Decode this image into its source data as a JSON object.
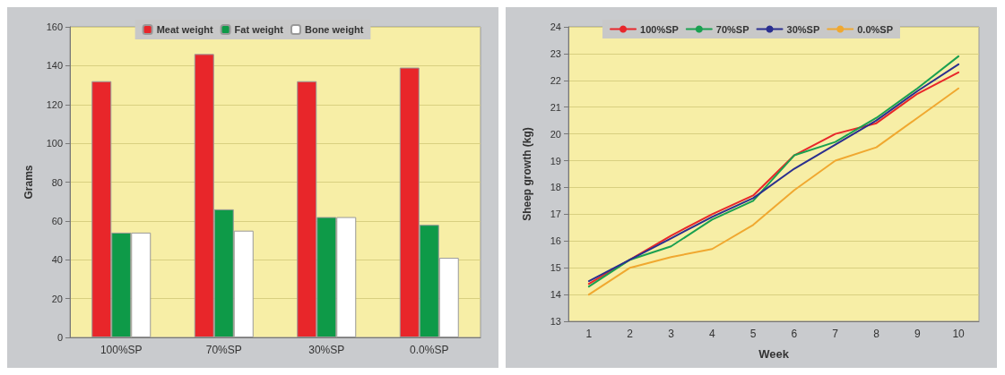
{
  "chart_data": [
    {
      "type": "bar",
      "ylabel": "Grams",
      "categories": [
        "100%SP",
        "70%SP",
        "30%SP",
        "0.0%SP"
      ],
      "ylim": [
        0,
        160
      ],
      "yticks": [
        0,
        20,
        40,
        60,
        80,
        100,
        120,
        140,
        160
      ],
      "grid": "y",
      "legend": "top",
      "series": [
        {
          "name": "Meat weight",
          "color": "#e8262a",
          "values": [
            132,
            146,
            132,
            139
          ]
        },
        {
          "name": "Fat weight",
          "color": "#0e9a48",
          "values": [
            54,
            66,
            62,
            58
          ]
        },
        {
          "name": "Bone weight",
          "color": "#ffffff",
          "values": [
            54,
            55,
            62,
            41
          ]
        }
      ]
    },
    {
      "type": "line",
      "xlabel": "Week",
      "ylabel": "Sheep growth (kg)",
      "categories": [
        "1",
        "2",
        "3",
        "4",
        "5",
        "6",
        "7",
        "8",
        "9",
        "10"
      ],
      "ylim": [
        13,
        24
      ],
      "yticks": [
        13,
        14,
        15,
        16,
        17,
        18,
        19,
        20,
        21,
        22,
        23,
        24
      ],
      "grid": "y",
      "legend": "top",
      "marker": "none",
      "line_style": "solid",
      "series": [
        {
          "name": "100%SP",
          "color": "#e8262a",
          "values": [
            14.4,
            15.3,
            16.2,
            17.0,
            17.7,
            19.2,
            20.0,
            20.4,
            21.5,
            22.3
          ]
        },
        {
          "name": "70%SP",
          "color": "#1aa050",
          "values": [
            14.3,
            15.3,
            15.8,
            16.8,
            17.5,
            19.2,
            19.7,
            20.6,
            21.7,
            22.9
          ]
        },
        {
          "name": "30%SP",
          "color": "#2a2f8f",
          "values": [
            14.5,
            15.3,
            16.1,
            16.9,
            17.6,
            18.7,
            19.6,
            20.5,
            21.6,
            22.6
          ]
        },
        {
          "name": "0.0%SP",
          "color": "#f0a830",
          "values": [
            14.0,
            15.0,
            15.4,
            15.7,
            16.6,
            17.9,
            19.0,
            19.5,
            20.6,
            21.7
          ]
        }
      ]
    }
  ]
}
